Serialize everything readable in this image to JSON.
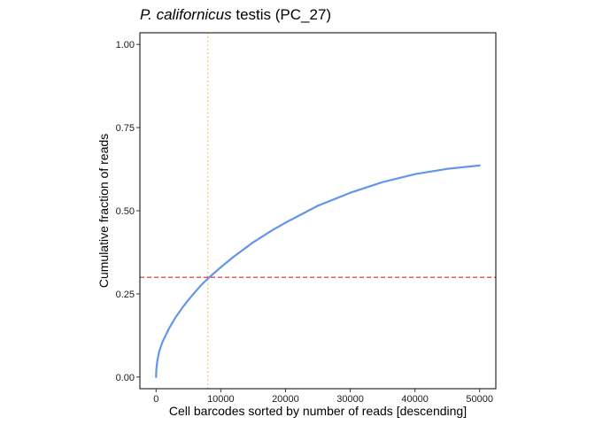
{
  "chart_data": {
    "type": "line",
    "title_italic": "P. californicus",
    "title_rest": " testis (PC_27)",
    "xlabel": "Cell barcodes sorted by number of reads [descending]",
    "ylabel": "Cumulative fraction of reads",
    "xlim": [
      -2500,
      52500
    ],
    "ylim": [
      -0.035,
      1.035
    ],
    "x_ticks": [
      {
        "value": 0,
        "label": "0"
      },
      {
        "value": 10000,
        "label": "10000"
      },
      {
        "value": 20000,
        "label": "20000"
      },
      {
        "value": 30000,
        "label": "30000"
      },
      {
        "value": 40000,
        "label": "40000"
      },
      {
        "value": 50000,
        "label": "50000"
      }
    ],
    "y_ticks": [
      {
        "value": 0.0,
        "label": "0.00"
      },
      {
        "value": 0.25,
        "label": "0.25"
      },
      {
        "value": 0.5,
        "label": "0.50"
      },
      {
        "value": 0.75,
        "label": "0.75"
      },
      {
        "value": 1.0,
        "label": "1.00"
      }
    ],
    "grid": false,
    "series": [
      {
        "color": "#6495ED",
        "x": [
          0,
          50,
          200,
          500,
          1000,
          2000,
          3000,
          4000,
          5000,
          6000,
          7000,
          8000,
          10000,
          12000,
          15000,
          18000,
          20000,
          25000,
          30000,
          35000,
          40000,
          45000,
          50000
        ],
        "y": [
          0.0,
          0.025,
          0.05,
          0.078,
          0.106,
          0.146,
          0.179,
          0.207,
          0.232,
          0.255,
          0.277,
          0.296,
          0.33,
          0.362,
          0.405,
          0.442,
          0.464,
          0.515,
          0.554,
          0.586,
          0.61,
          0.626,
          0.636
        ]
      }
    ],
    "hline": {
      "y": 0.3,
      "color": "#D62728",
      "style": "dashed"
    },
    "vline": {
      "x": 8000,
      "color": "#FFB347",
      "style": "dotted"
    }
  }
}
